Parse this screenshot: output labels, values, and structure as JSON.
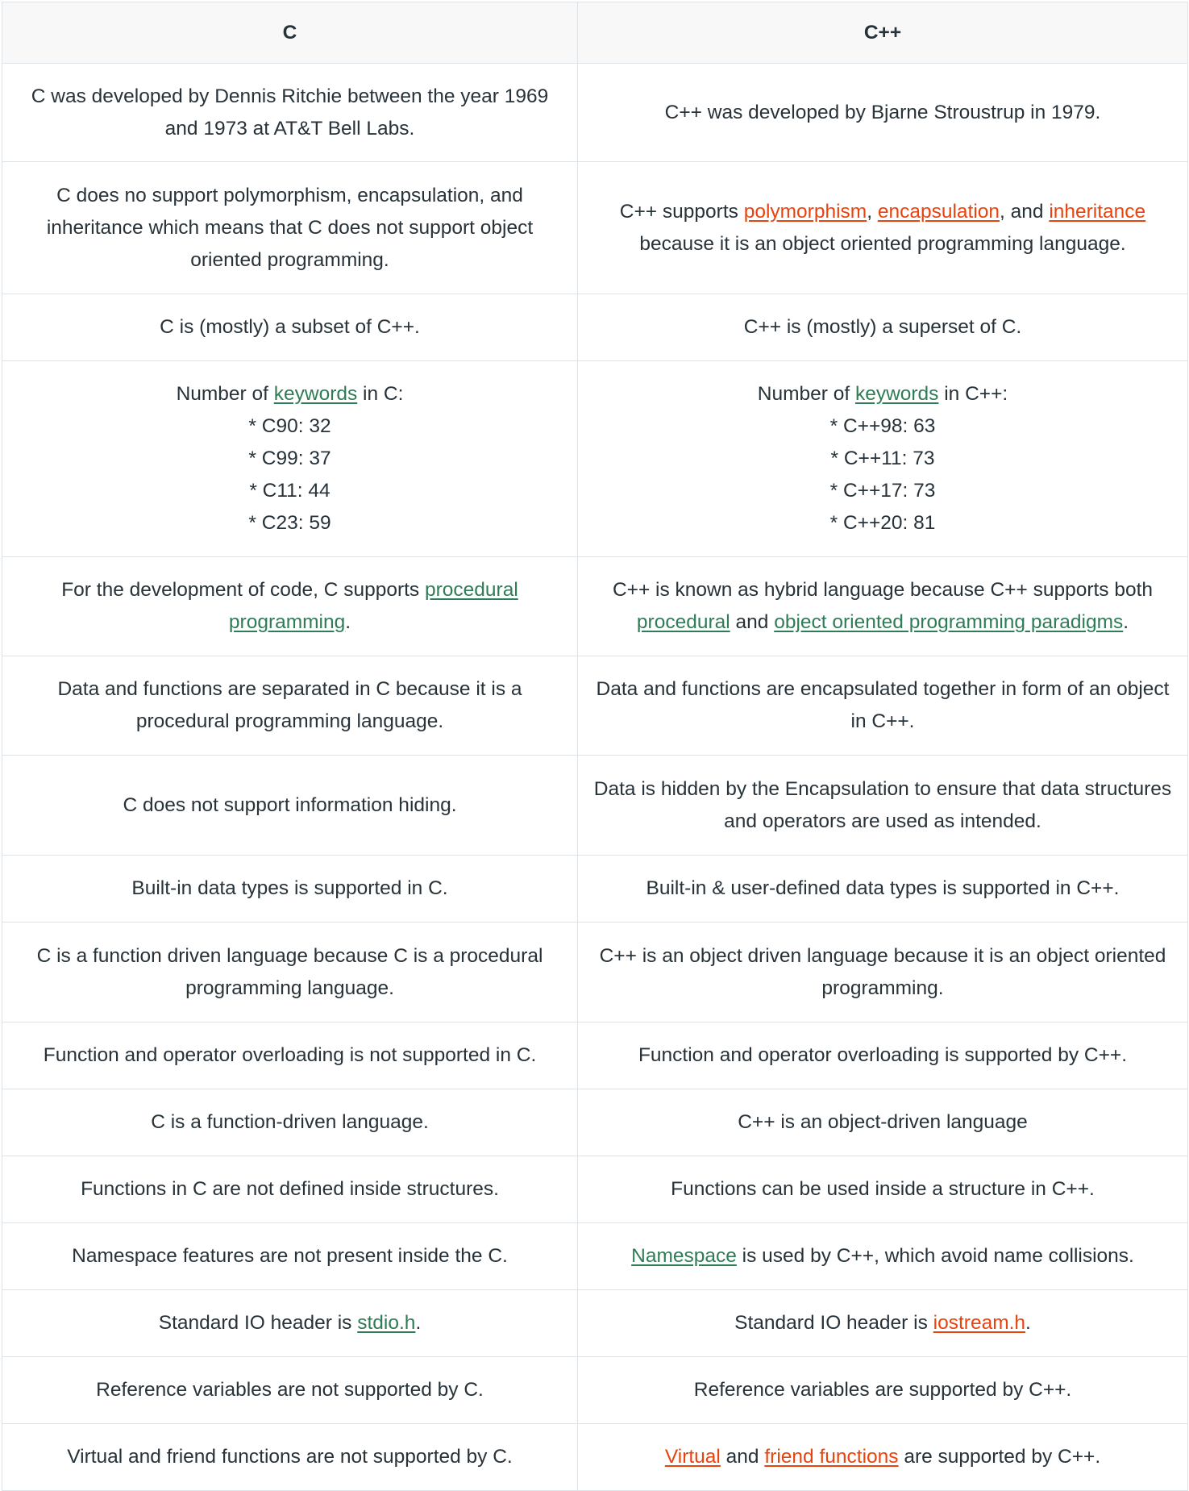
{
  "headers": {
    "c": "C",
    "cpp": "C++"
  },
  "colors": {
    "green_link": "#2f7c56",
    "orange_link": "#e8440f",
    "text": "#273239",
    "border": "#dde3e6",
    "header_bg": "#f8f8f8"
  },
  "rows": [
    {
      "c": {
        "text": "C was developed by Dennis Ritchie between the year 1969 and 1973 at AT&T Bell Labs."
      },
      "cpp": {
        "text": "C++ was developed by Bjarne Stroustrup in 1979."
      }
    },
    {
      "c": {
        "text": "C does no support polymorphism, encapsulation, and inheritance which means that C does not support object oriented programming."
      },
      "cpp": {
        "pre": "C++ supports ",
        "link1": "polymorphism",
        "sep1": ", ",
        "link2": "encapsulation",
        "sep2": ", and ",
        "link3": "inheritance",
        "post": " because it is an object oriented programming language."
      }
    },
    {
      "c": {
        "text": "C is (mostly) a subset of C++."
      },
      "cpp": {
        "text": "C++ is (mostly) a superset of C."
      }
    },
    {
      "c": {
        "pre": "Number of ",
        "link": "keywords",
        "post": " in C:",
        "lines": [
          "* C90: 32",
          "* C99: 37",
          "* C11: 44",
          "* C23: 59"
        ]
      },
      "cpp": {
        "pre": "Number of ",
        "link": "keywords",
        "post": " in C++:",
        "lines": [
          "* C++98: 63",
          "* C++11: 73",
          "* C++17: 73",
          "* C++20: 81"
        ]
      }
    },
    {
      "c": {
        "pre": "For the development of code, C supports ",
        "link": "procedural programming",
        "post": "."
      },
      "cpp": {
        "pre": "C++ is known as hybrid language because C++ supports both ",
        "link1": "procedural",
        "mid": " and ",
        "link2": "object oriented programming paradigms",
        "post": "."
      }
    },
    {
      "c": {
        "text": "Data and functions are separated in C because it is a procedural programming language."
      },
      "cpp": {
        "text": "Data and functions are encapsulated together in form of an object in C++."
      }
    },
    {
      "c": {
        "text": "C does not support information hiding."
      },
      "cpp": {
        "text": "Data is hidden by the Encapsulation to ensure that data structures and operators are used as intended."
      }
    },
    {
      "c": {
        "text": "Built-in data types is supported in C."
      },
      "cpp": {
        "text": "Built-in & user-defined data types is supported in C++."
      }
    },
    {
      "c": {
        "text": "C is a function driven language because C is a procedural programming language."
      },
      "cpp": {
        "text": "C++ is an object driven language because it is an object oriented programming."
      }
    },
    {
      "c": {
        "text": "Function and operator overloading is not supported in C."
      },
      "cpp": {
        "text": "Function and operator overloading is supported by C++."
      }
    },
    {
      "c": {
        "text": "C is a function-driven language."
      },
      "cpp": {
        "text": "C++ is an object-driven language"
      }
    },
    {
      "c": {
        "text": "Functions in C are not defined inside structures."
      },
      "cpp": {
        "text": "Functions can be used inside a structure in C++."
      }
    },
    {
      "c": {
        "text": "Namespace features are not present inside the C."
      },
      "cpp": {
        "link": "Namespace",
        "post": " is used by C++, which avoid name collisions."
      }
    },
    {
      "c": {
        "pre": "Standard IO header is ",
        "link": "stdio.h",
        "post": "."
      },
      "cpp": {
        "pre": "Standard IO header is ",
        "link": "iostream.h",
        "post": "."
      }
    },
    {
      "c": {
        "text": "Reference variables are not supported by C."
      },
      "cpp": {
        "text": "Reference variables are supported by C++."
      }
    },
    {
      "c": {
        "text": "Virtual and friend functions are not supported by C."
      },
      "cpp": {
        "link1": "Virtual",
        "mid": " and ",
        "link2": "friend functions",
        "post": " are supported by C++."
      }
    }
  ]
}
